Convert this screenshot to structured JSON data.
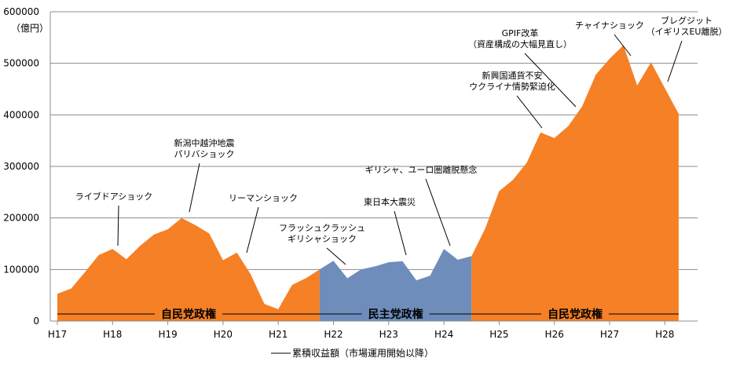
{
  "chart_data": {
    "type": "area",
    "title": "",
    "ylabel": "（億円）",
    "ylabel_top": "600000",
    "xlabel": "",
    "ylim": [
      0,
      600000
    ],
    "y_ticks": [
      "0",
      "100000",
      "200000",
      "300000",
      "400000",
      "500000",
      "600000"
    ],
    "categories": [
      "H17",
      "H18",
      "H19",
      "H20",
      "H21",
      "H22",
      "H23",
      "H24",
      "H25",
      "H26",
      "H27",
      "H28"
    ],
    "x": [
      0,
      0.25,
      0.5,
      0.75,
      1,
      1.25,
      1.5,
      1.75,
      2,
      2.25,
      2.5,
      2.75,
      3,
      3.25,
      3.5,
      3.75,
      4,
      4.25,
      4.5,
      4.75,
      5,
      5.25,
      5.5,
      5.75,
      6,
      6.25,
      6.5,
      6.75,
      7,
      7.25,
      7.5,
      7.75,
      8,
      8.25,
      8.5,
      8.75,
      9,
      9.25,
      9.5,
      9.75,
      10,
      10.25,
      10.5,
      10.75,
      11,
      11.25
    ],
    "series": [
      {
        "name": "累積収益額（市場運用開始以降）",
        "values": [
          53000,
          63000,
          95000,
          128000,
          140000,
          120000,
          146000,
          168000,
          178000,
          200000,
          186000,
          170000,
          118000,
          133000,
          91000,
          33000,
          23000,
          70000,
          83000,
          100000,
          117000,
          83000,
          100000,
          106000,
          114000,
          116000,
          79000,
          88000,
          140000,
          119000,
          126000,
          180000,
          252000,
          274000,
          307000,
          366000,
          355000,
          378000,
          416000,
          478000,
          509000,
          535000,
          457000,
          502000,
          452000,
          402000
        ]
      }
    ],
    "periods": [
      {
        "label": "自民党政権",
        "x_start": 0,
        "x_end": 4.75,
        "color": "#F58025"
      },
      {
        "label": "民主党政権",
        "x_start": 4.75,
        "x_end": 7.5,
        "color": "#6E8DBB"
      },
      {
        "label": "自民党政権",
        "x_start": 7.5,
        "x_end": 11.25,
        "color": "#F58025"
      }
    ],
    "annotations": [
      {
        "lines": [
          "ライブドアショック"
        ],
        "x": 1.1,
        "y": 140000
      },
      {
        "lines": [
          "新潟中越沖地震",
          "パリバショック"
        ],
        "x": 2.45,
        "y": 200000
      },
      {
        "lines": [
          "リーマンショック"
        ],
        "x": 3.45,
        "y": 130000
      },
      {
        "lines": [
          "フラッシュクラッシュ",
          "ギリシャショック"
        ],
        "x": 5.35,
        "y": 108000
      },
      {
        "lines": [
          "東日本大震災"
        ],
        "x": 6.3,
        "y": 120000
      },
      {
        "lines": [
          "ギリシャ、ユーロ圏離脱懸念"
        ],
        "x": 7.15,
        "y": 147000
      },
      {
        "lines": [
          "新興国通貨不安",
          "ウクライナ情勢緊迫化"
        ],
        "x": 8.8,
        "y": 370000
      },
      {
        "lines": [
          "GPIF改革",
          "（資産構成の大幅見直し）"
        ],
        "x": 9.4,
        "y": 415000
      },
      {
        "lines": [
          "チャイナショック"
        ],
        "x": 10.4,
        "y": 520000
      },
      {
        "lines": [
          "ブレグジット",
          "（イギリスEU離脱）"
        ],
        "x": 11.05,
        "y": 465000
      }
    ],
    "legend": "累積収益額（市場運用開始以降）",
    "legend_position": "bottom",
    "grid": true
  }
}
